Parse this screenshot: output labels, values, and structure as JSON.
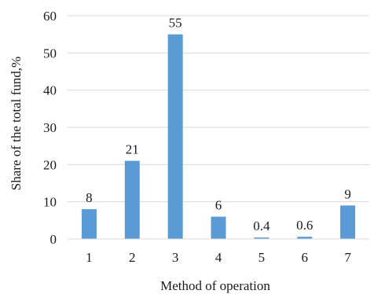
{
  "chart_data": {
    "type": "bar",
    "categories": [
      "1",
      "2",
      "3",
      "4",
      "5",
      "6",
      "7"
    ],
    "values": [
      8,
      21,
      55,
      6,
      0.4,
      0.6,
      9
    ],
    "data_labels": [
      "8",
      "21",
      "55",
      "6",
      "0.4",
      "0.6",
      "9"
    ],
    "xlabel": "Method of operation",
    "ylabel": "Share of the total fund,%",
    "ylim": [
      0,
      60
    ],
    "yticks": [
      0,
      10,
      20,
      30,
      40,
      50,
      60
    ],
    "grid": true,
    "legend": "none",
    "bar_color": "#5b9bd5",
    "grid_color": "#d9d9d9"
  }
}
